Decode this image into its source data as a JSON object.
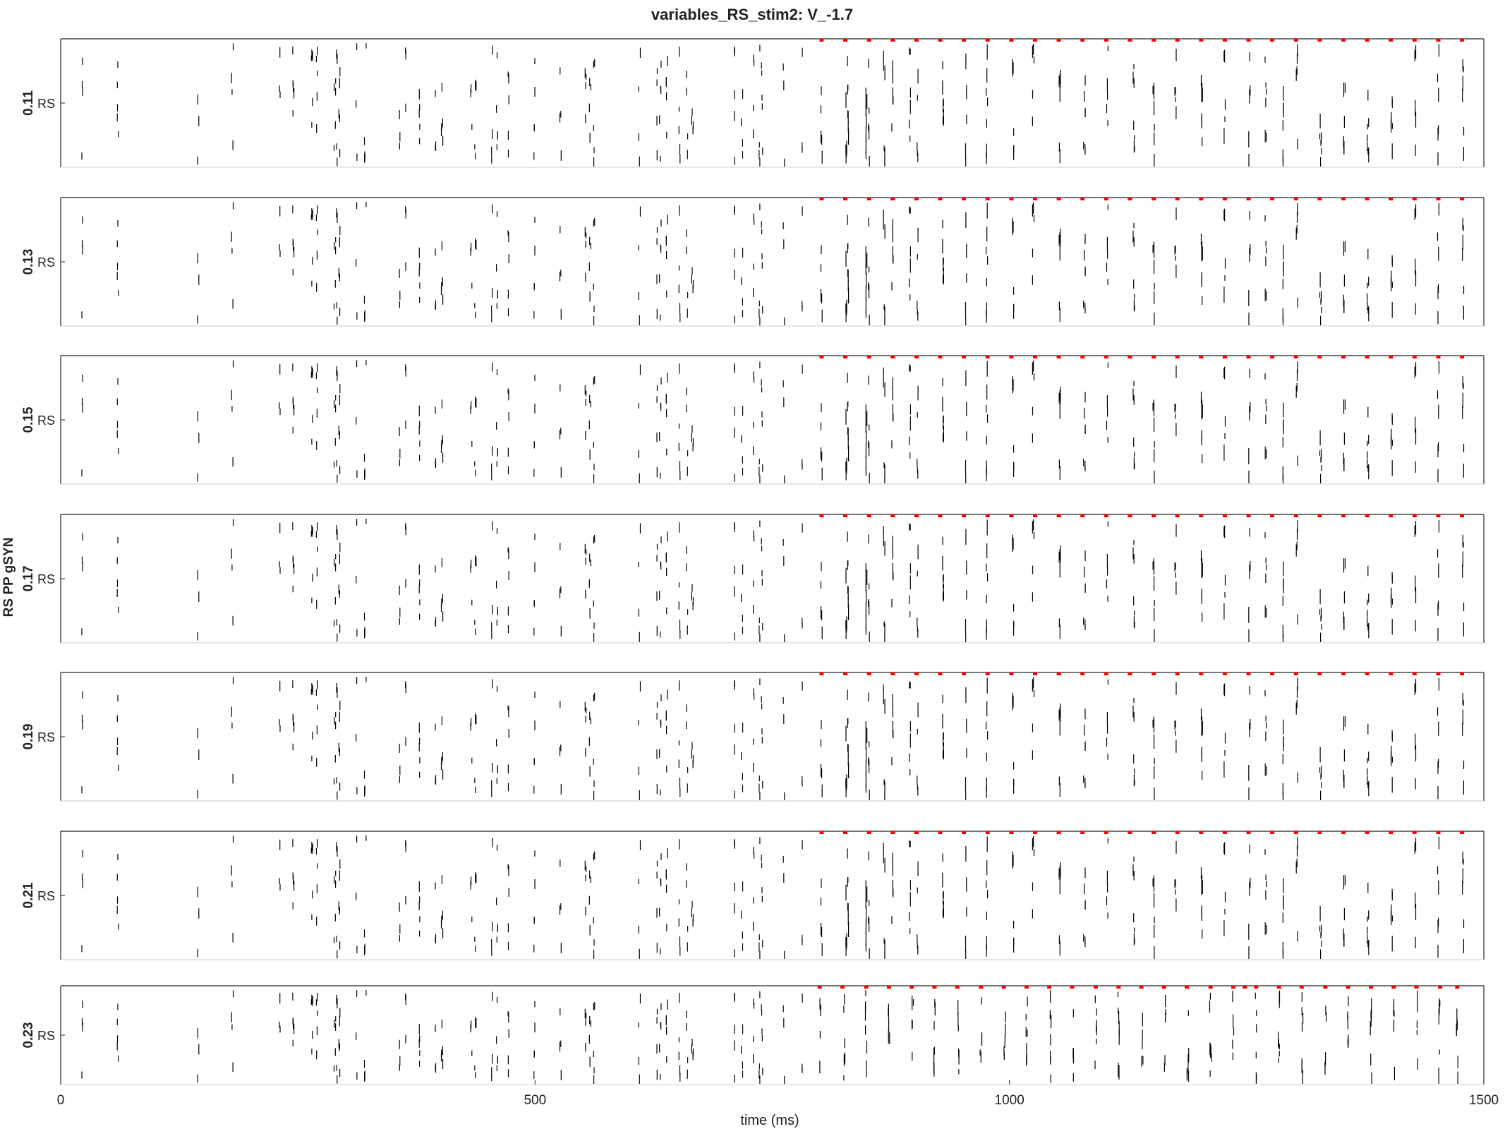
{
  "figure": {
    "title": "variables_RS_stim2: V_-1.7",
    "xlabel": "time (ms)",
    "ylabel": "RS PP gSYN"
  },
  "chart_data": {
    "type": "scatter",
    "title": "variables_RS_stim2: V_-1.7",
    "xlabel": "time (ms)",
    "ylabel": "RS PP gSYN",
    "xlim": [
      0,
      1500
    ],
    "xticks": [
      0,
      500,
      1000,
      1500
    ],
    "population": "RS",
    "stim_color": "#ff0000",
    "spike_color": "#000000",
    "panels": [
      {
        "label": "0.11",
        "stim_times": [
          802,
          827,
          852,
          877,
          902,
          927,
          952,
          977,
          1002,
          1027,
          1052,
          1077,
          1102,
          1127,
          1152,
          1177,
          1202,
          1227,
          1252,
          1277,
          1302,
          1327,
          1352,
          1377,
          1402,
          1427,
          1452,
          1477
        ],
        "spike_columns": [
          23,
          60,
          145,
          181,
          231,
          245,
          265,
          270,
          289,
          291,
          294,
          312,
          321,
          357,
          363,
          378,
          395,
          402,
          433,
          437,
          455,
          460,
          472,
          499,
          527,
          553,
          558,
          562,
          610,
          629,
          632,
          639,
          652,
          660,
          666,
          710,
          718,
          730,
          736,
          739,
          762,
          782,
          802,
          828,
          830,
          849,
          852,
          868,
          877,
          895,
          903,
          930,
          954,
          976,
          1004,
          1025,
          1053,
          1079,
          1103,
          1131,
          1152,
          1175,
          1203,
          1227,
          1253,
          1270,
          1289,
          1303,
          1328,
          1353,
          1378,
          1403,
          1428,
          1452,
          1478
        ]
      },
      {
        "label": "0.13",
        "stim_times": [
          802,
          827,
          852,
          877,
          902,
          927,
          952,
          977,
          1002,
          1027,
          1052,
          1077,
          1102,
          1127,
          1152,
          1177,
          1202,
          1227,
          1252,
          1277,
          1302,
          1327,
          1352,
          1377,
          1402,
          1427,
          1452,
          1477
        ],
        "spike_columns": [
          23,
          60,
          145,
          181,
          231,
          245,
          265,
          270,
          289,
          291,
          294,
          312,
          321,
          357,
          363,
          378,
          395,
          402,
          433,
          437,
          455,
          460,
          472,
          499,
          527,
          553,
          558,
          562,
          610,
          629,
          632,
          639,
          652,
          660,
          666,
          710,
          718,
          730,
          736,
          739,
          762,
          782,
          802,
          828,
          830,
          849,
          852,
          868,
          877,
          895,
          903,
          930,
          954,
          976,
          1004,
          1025,
          1053,
          1079,
          1103,
          1131,
          1152,
          1175,
          1203,
          1227,
          1253,
          1270,
          1289,
          1303,
          1328,
          1353,
          1378,
          1403,
          1428,
          1452,
          1478
        ]
      },
      {
        "label": "0.15",
        "stim_times": [
          802,
          827,
          852,
          877,
          902,
          927,
          952,
          977,
          1002,
          1027,
          1052,
          1077,
          1102,
          1127,
          1152,
          1177,
          1202,
          1227,
          1252,
          1277,
          1302,
          1327,
          1352,
          1377,
          1402,
          1427,
          1452,
          1477
        ],
        "spike_columns": [
          23,
          60,
          145,
          181,
          231,
          245,
          265,
          270,
          289,
          291,
          294,
          312,
          321,
          357,
          363,
          378,
          395,
          402,
          433,
          437,
          455,
          460,
          472,
          499,
          527,
          553,
          558,
          562,
          610,
          629,
          632,
          639,
          652,
          660,
          666,
          710,
          718,
          730,
          736,
          739,
          762,
          782,
          802,
          828,
          830,
          849,
          852,
          868,
          877,
          895,
          903,
          930,
          954,
          976,
          1004,
          1025,
          1053,
          1079,
          1103,
          1131,
          1152,
          1175,
          1203,
          1227,
          1253,
          1270,
          1289,
          1303,
          1328,
          1353,
          1378,
          1403,
          1428,
          1452,
          1478
        ]
      },
      {
        "label": "0.17",
        "stim_times": [
          802,
          827,
          852,
          877,
          902,
          927,
          952,
          977,
          1002,
          1027,
          1052,
          1077,
          1102,
          1127,
          1152,
          1177,
          1202,
          1227,
          1252,
          1277,
          1302,
          1327,
          1352,
          1377,
          1402,
          1427,
          1452,
          1477
        ],
        "spike_columns": [
          23,
          60,
          145,
          181,
          231,
          245,
          265,
          270,
          289,
          291,
          294,
          312,
          321,
          357,
          363,
          378,
          395,
          402,
          433,
          437,
          455,
          460,
          472,
          499,
          527,
          553,
          558,
          562,
          610,
          629,
          632,
          639,
          652,
          660,
          666,
          710,
          718,
          730,
          736,
          739,
          762,
          782,
          802,
          828,
          830,
          849,
          852,
          868,
          877,
          895,
          903,
          930,
          954,
          976,
          1004,
          1025,
          1053,
          1079,
          1103,
          1131,
          1152,
          1175,
          1203,
          1227,
          1253,
          1270,
          1289,
          1303,
          1328,
          1353,
          1378,
          1403,
          1428,
          1452,
          1478
        ]
      },
      {
        "label": "0.19",
        "stim_times": [
          802,
          827,
          852,
          877,
          902,
          927,
          952,
          977,
          1002,
          1027,
          1052,
          1077,
          1102,
          1127,
          1152,
          1177,
          1202,
          1227,
          1252,
          1277,
          1302,
          1327,
          1352,
          1377,
          1402,
          1427,
          1452,
          1477
        ],
        "spike_columns": [
          23,
          60,
          145,
          181,
          231,
          245,
          265,
          270,
          289,
          291,
          294,
          312,
          321,
          357,
          363,
          378,
          395,
          402,
          433,
          437,
          455,
          460,
          472,
          499,
          527,
          553,
          558,
          562,
          610,
          629,
          632,
          639,
          652,
          660,
          666,
          710,
          718,
          730,
          736,
          739,
          762,
          782,
          802,
          828,
          830,
          849,
          852,
          868,
          877,
          895,
          903,
          930,
          954,
          976,
          1004,
          1025,
          1053,
          1079,
          1103,
          1131,
          1152,
          1175,
          1203,
          1227,
          1253,
          1270,
          1289,
          1303,
          1328,
          1353,
          1378,
          1403,
          1428,
          1452,
          1478
        ]
      },
      {
        "label": "0.21",
        "stim_times": [
          802,
          827,
          852,
          877,
          902,
          927,
          952,
          977,
          1002,
          1027,
          1052,
          1077,
          1102,
          1127,
          1152,
          1177,
          1202,
          1227,
          1252,
          1277,
          1302,
          1327,
          1352,
          1377,
          1402,
          1427,
          1452,
          1477
        ],
        "spike_columns": [
          23,
          60,
          145,
          181,
          231,
          245,
          265,
          270,
          289,
          291,
          294,
          312,
          321,
          357,
          363,
          378,
          395,
          402,
          433,
          437,
          455,
          460,
          472,
          499,
          527,
          553,
          558,
          562,
          610,
          629,
          632,
          639,
          652,
          660,
          666,
          710,
          718,
          730,
          736,
          739,
          762,
          782,
          802,
          828,
          830,
          849,
          852,
          868,
          877,
          895,
          903,
          930,
          954,
          976,
          1004,
          1025,
          1053,
          1079,
          1103,
          1131,
          1152,
          1175,
          1203,
          1227,
          1253,
          1270,
          1289,
          1303,
          1328,
          1353,
          1378,
          1403,
          1428,
          1452,
          1478
        ]
      },
      {
        "label": "0.23",
        "stim_times": [
          800,
          824,
          849,
          873,
          897,
          921,
          945,
          970,
          994,
          1018,
          1042,
          1066,
          1091,
          1115,
          1139,
          1163,
          1187,
          1212,
          1236,
          1248,
          1260,
          1284,
          1308,
          1333,
          1357,
          1381,
          1405,
          1429,
          1454,
          1472
        ],
        "spike_columns": [
          23,
          60,
          145,
          181,
          231,
          245,
          265,
          270,
          289,
          291,
          294,
          312,
          321,
          357,
          363,
          378,
          395,
          402,
          433,
          437,
          455,
          460,
          472,
          499,
          527,
          553,
          558,
          562,
          610,
          629,
          632,
          639,
          652,
          660,
          666,
          710,
          718,
          730,
          736,
          739,
          762,
          782,
          801,
          826,
          849,
          873,
          898,
          921,
          946,
          970,
          995,
          1018,
          1043,
          1067,
          1091,
          1115,
          1140,
          1164,
          1188,
          1212,
          1236,
          1260,
          1284,
          1309,
          1333,
          1357,
          1381,
          1405,
          1430,
          1453,
          1472
        ]
      }
    ]
  }
}
